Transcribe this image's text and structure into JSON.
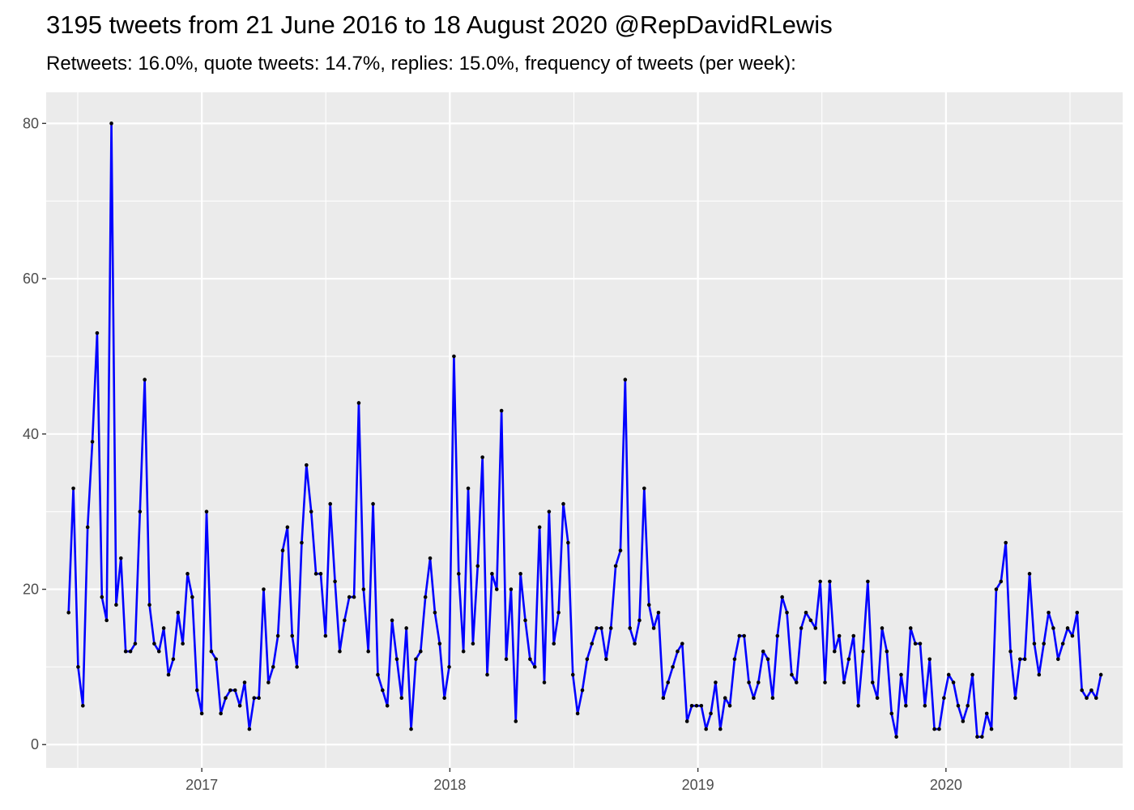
{
  "chart_data": {
    "type": "line",
    "title": "3195 tweets from 21 June 2016 to 18 August 2020 @RepDavidRLewis",
    "subtitle": "Retweets: 16.0%, quote tweets: 14.7%, replies: 15.0%, frequency of tweets (per week):",
    "xlabel": "",
    "ylabel": "",
    "x_start": "2016-06-19",
    "x_step_days": 7,
    "xlim": [
      "2016-05-17",
      "2020-09-17"
    ],
    "ylim": [
      -3,
      84
    ],
    "x_ticks": [
      {
        "label": "2017",
        "date": "2017-01-01"
      },
      {
        "label": "2018",
        "date": "2018-01-01"
      },
      {
        "label": "2019",
        "date": "2019-01-01"
      },
      {
        "label": "2020",
        "date": "2020-01-01"
      }
    ],
    "y_ticks": [
      0,
      20,
      40,
      60,
      80
    ],
    "grid": true,
    "legend": "none",
    "line_color": "#0000ff",
    "point_color": "#000000",
    "panel_color": "#ebebeb",
    "series": [
      {
        "values": [
          17,
          33,
          10,
          5,
          28,
          39,
          53,
          19,
          16,
          80,
          18,
          24,
          12,
          12,
          13,
          30,
          47,
          18,
          13,
          12,
          15,
          9,
          11,
          17,
          13,
          22,
          19,
          7,
          4,
          30,
          12,
          11,
          4,
          6,
          7,
          7,
          5,
          8,
          2,
          6,
          6,
          20,
          8,
          10,
          14,
          25,
          28,
          14,
          10,
          26,
          36,
          30,
          22,
          22,
          14,
          31,
          21,
          12,
          16,
          19,
          19,
          44,
          20,
          12,
          31,
          9,
          7,
          5,
          16,
          11,
          6,
          15,
          2,
          11,
          12,
          19,
          24,
          17,
          13,
          6,
          10,
          50,
          22,
          12,
          33,
          13,
          23,
          37,
          9,
          22,
          20,
          43,
          11,
          20,
          3,
          22,
          16,
          11,
          10,
          28,
          8,
          30,
          13,
          17,
          31,
          26,
          9,
          4,
          7,
          11,
          13,
          15,
          15,
          11,
          15,
          23,
          25,
          47,
          15,
          13,
          16,
          33,
          18,
          15,
          17,
          6,
          8,
          10,
          12,
          13,
          3,
          5,
          5,
          5,
          2,
          4,
          8,
          2,
          6,
          5,
          11,
          14,
          14,
          8,
          6,
          8,
          12,
          11,
          6,
          14,
          19,
          17,
          9,
          8,
          15,
          17,
          16,
          15,
          21,
          8,
          21,
          12,
          14,
          8,
          11,
          14,
          5,
          12,
          21,
          8,
          6,
          15,
          12,
          4,
          1,
          9,
          5,
          15,
          13,
          13,
          5,
          11,
          2,
          2,
          6,
          9,
          8,
          5,
          3,
          5,
          9,
          1,
          1,
          4,
          2,
          20,
          21,
          26,
          12,
          6,
          11,
          11,
          22,
          13,
          9,
          13,
          17,
          15,
          11,
          13,
          15,
          14,
          17,
          7,
          6,
          7,
          6,
          9
        ]
      }
    ]
  }
}
